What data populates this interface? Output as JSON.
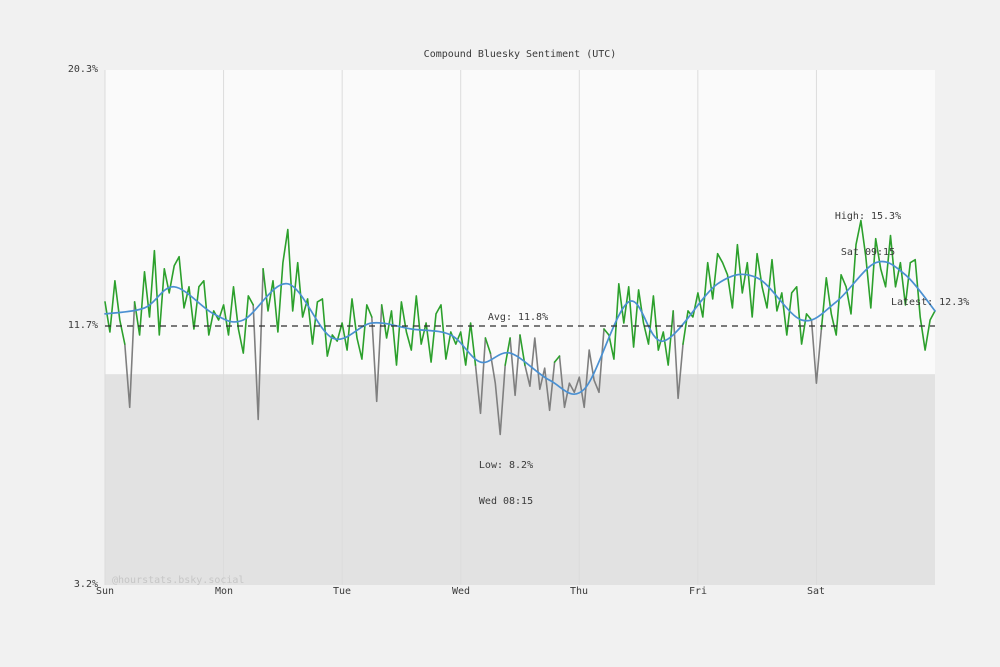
{
  "title": "Compound Bluesky Sentiment (UTC)",
  "watermark": "@hourstats.bsky.social",
  "annotations": {
    "high": {
      "line1": "High: 15.3%",
      "line2": "Sat 09:15",
      "value": 15.3,
      "t_hours": 153.25
    },
    "low": {
      "line1": "Low: 8.2%",
      "line2": "Wed 08:15",
      "value": 8.2,
      "t_hours": 80.25
    },
    "avg": {
      "label": "Avg: 11.8%",
      "value": 11.8
    },
    "latest": {
      "label": "Latest: 12.3%",
      "value": 12.3
    }
  },
  "chart_data": {
    "type": "line",
    "title": "Compound Bluesky Sentiment (UTC)",
    "x_unit": "hours from Sun 00:00 (UTC)",
    "x_max": 168,
    "x_tick_hours": [
      0,
      24,
      48,
      72,
      96,
      120,
      144
    ],
    "x_tick_labels": [
      "Sun",
      "Mon",
      "Tue",
      "Wed",
      "Thu",
      "Fri",
      "Sat"
    ],
    "ylim": [
      3.2,
      20.3
    ],
    "y_tick_values": [
      3.2,
      11.7,
      20.3
    ],
    "y_tick_labels": [
      "3.2%",
      "11.7%",
      "20.3%"
    ],
    "avg": 11.8,
    "band": {
      "ymin": 3.2,
      "ymax": 10.2,
      "color": "#e2e2e2"
    },
    "grid": "vertical-day-lines",
    "legend": "none",
    "colors": {
      "raw": "#2ca02c",
      "raw_below_band": "#7f7f7f",
      "smoothed": "#4a90d2",
      "avg_line": "#2f2f2f",
      "grid": "#dcdcdc",
      "plot_bg": "#fafafa",
      "page_bg": "#f1f1f1",
      "text": "#3a3a3a",
      "watermark": "#c6c6c6"
    },
    "series": [
      {
        "name": "raw sentiment",
        "step_hours": 1,
        "values": [
          12.6,
          11.6,
          13.3,
          12.0,
          11.2,
          9.1,
          12.6,
          11.5,
          13.6,
          12.1,
          14.3,
          11.5,
          13.7,
          12.9,
          13.8,
          14.1,
          12.4,
          13.1,
          11.7,
          13.1,
          13.3,
          11.5,
          12.3,
          12.0,
          12.5,
          11.5,
          13.1,
          11.7,
          10.9,
          12.8,
          12.5,
          8.7,
          13.7,
          12.3,
          13.3,
          11.6,
          13.9,
          15.0,
          12.3,
          13.9,
          12.1,
          12.7,
          11.2,
          12.6,
          12.7,
          10.8,
          11.5,
          11.3,
          11.9,
          11.0,
          12.7,
          11.4,
          10.7,
          12.5,
          12.1,
          9.3,
          12.5,
          11.4,
          12.3,
          10.5,
          12.6,
          11.6,
          11.0,
          12.8,
          11.2,
          11.9,
          10.6,
          12.2,
          12.5,
          10.7,
          11.6,
          11.2,
          11.6,
          10.5,
          11.9,
          10.5,
          8.9,
          11.4,
          10.9,
          9.9,
          8.2,
          10.5,
          11.4,
          9.5,
          11.5,
          10.5,
          9.8,
          11.4,
          9.7,
          10.4,
          9.0,
          10.6,
          10.8,
          9.1,
          9.9,
          9.6,
          10.1,
          9.1,
          11.0,
          10.0,
          9.6,
          11.7,
          11.5,
          10.7,
          13.2,
          11.9,
          13.1,
          11.1,
          13.0,
          11.9,
          11.2,
          12.8,
          11.0,
          11.6,
          10.5,
          12.3,
          9.4,
          11.2,
          12.3,
          12.1,
          12.9,
          12.1,
          13.9,
          12.7,
          14.2,
          13.9,
          13.5,
          12.4,
          14.5,
          12.9,
          13.9,
          12.1,
          14.2,
          13.1,
          12.4,
          14.0,
          12.3,
          12.9,
          11.5,
          12.9,
          13.1,
          11.2,
          12.2,
          12.0,
          9.9,
          11.7,
          13.4,
          12.2,
          11.5,
          13.5,
          13.1,
          12.2,
          14.5,
          15.3,
          14.1,
          12.4,
          14.7,
          13.7,
          13.1,
          14.8,
          13.1,
          13.9,
          12.5,
          13.9,
          14.0,
          12.1,
          11.0,
          12.0,
          12.3
        ]
      },
      {
        "name": "smoothed sentiment",
        "anchor_t": [
          0,
          8,
          14,
          22,
          28,
          37,
          46,
          54,
          62,
          70,
          76,
          82,
          90,
          97,
          106,
          113,
          124,
          132,
          141,
          148,
          156,
          162,
          168
        ],
        "anchor_v": [
          12.2,
          12.4,
          13.1,
          12.2,
          12.0,
          13.2,
          11.4,
          11.9,
          11.7,
          11.5,
          10.6,
          10.9,
          10.0,
          9.7,
          12.6,
          11.3,
          13.2,
          13.4,
          12.0,
          12.6,
          13.9,
          13.5,
          12.3
        ]
      }
    ]
  }
}
